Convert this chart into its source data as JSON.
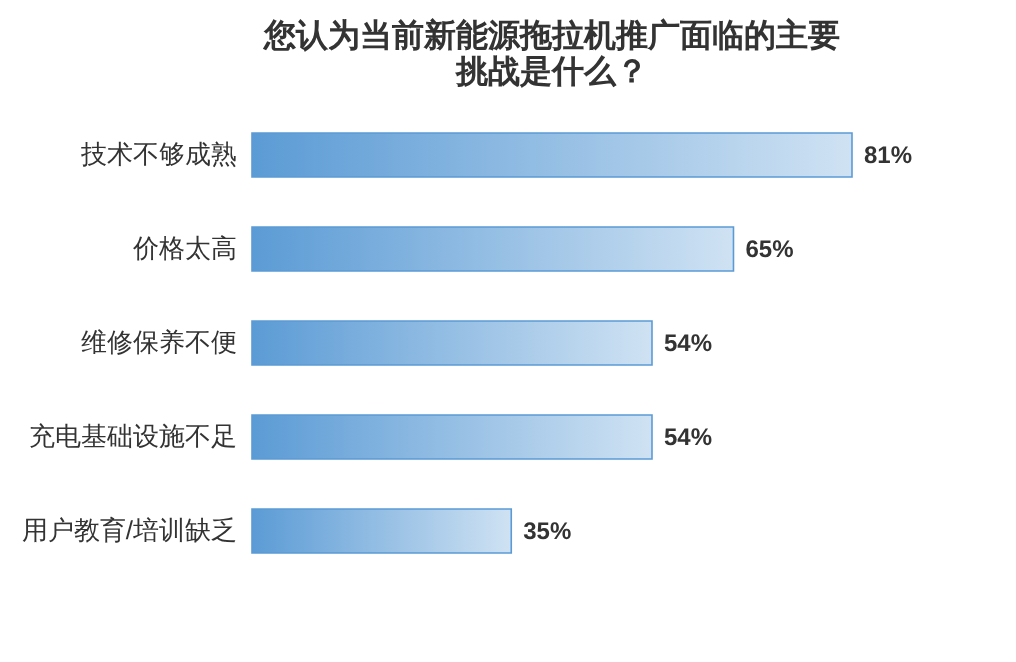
{
  "chart_data": {
    "type": "bar",
    "orientation": "horizontal",
    "title": "您认为当前新能源拖拉机推广面临的主要挑战是什么？",
    "categories": [
      "技术不够成熟",
      "价格太高",
      "维修保养不便",
      "充电基础设施不足",
      "用户教育/培训缺乏"
    ],
    "values": [
      81,
      65,
      54,
      54,
      35
    ],
    "color": "#5b9bd5",
    "value_labels": [
      "81%",
      "65%",
      "54%",
      "54%",
      "35%"
    ]
  }
}
